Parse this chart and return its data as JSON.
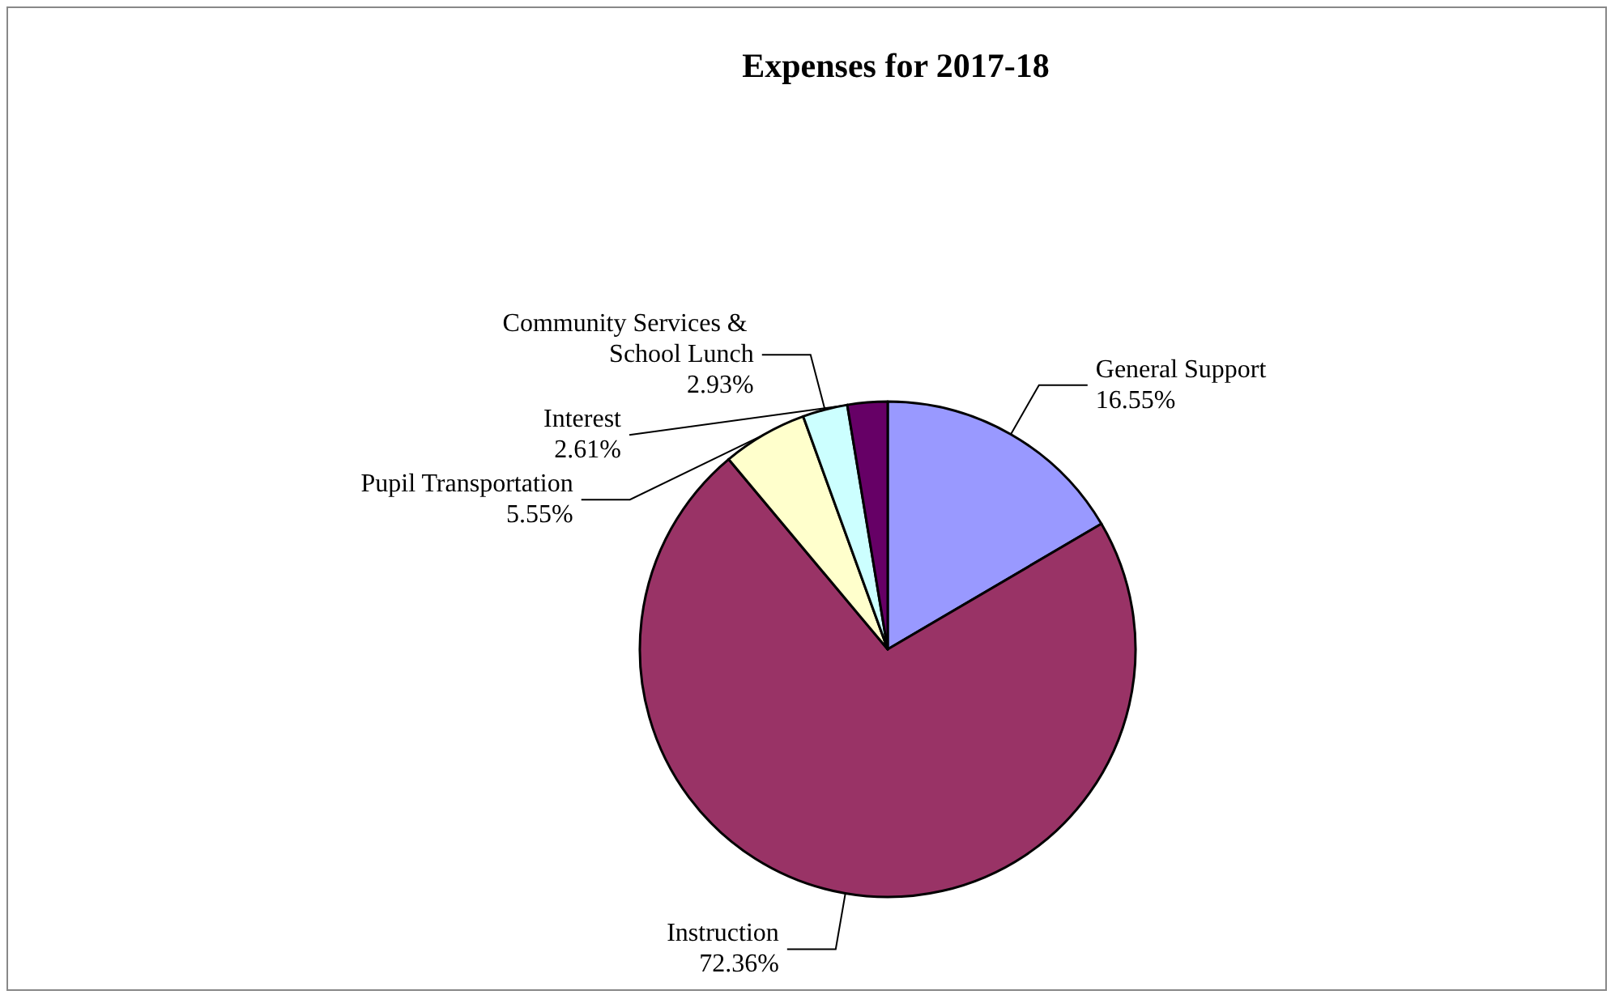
{
  "chart_data": {
    "type": "pie",
    "title": "Expenses for 2017-18",
    "categories": [
      "General Support",
      "Instruction",
      "Pupil Transportation",
      "Community Services & School Lunch",
      "Interest"
    ],
    "values": [
      16.55,
      72.36,
      5.55,
      2.93,
      2.61
    ],
    "value_labels": [
      "16.55%",
      "72.36%",
      "5.55%",
      "2.93%",
      "2.61%"
    ],
    "colors": [
      "#9999ff",
      "#993366",
      "#ffffcc",
      "#ccffff",
      "#660066"
    ],
    "legend": false
  }
}
